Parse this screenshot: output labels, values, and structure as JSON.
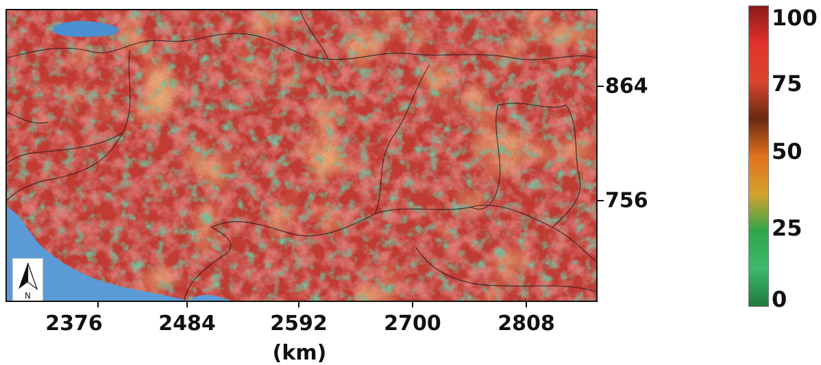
{
  "map": {
    "x_tick_labels": [
      "2376",
      "2484",
      "2592",
      "2700",
      "2808"
    ],
    "y_tick_labels": [
      "864",
      "756"
    ],
    "x_unit": "(km)",
    "north_arrow_letter": "N",
    "palette": {
      "water": "#4a8fd0",
      "land_high": "#b22a2a",
      "land_mid": "#e0503a",
      "land_low": "#2e8a55",
      "boundary": "#222222"
    }
  },
  "legend": {
    "labels": [
      "100",
      "75",
      "50",
      "25",
      "0"
    ],
    "stops": [
      "#8b1a1a",
      "#e3322b",
      "#d9452d",
      "#6b2a12",
      "#e0701f",
      "#d7a12c",
      "#2fa64a",
      "#3cb96a",
      "#1e7a3e"
    ]
  },
  "chart_data": {
    "type": "heatmap",
    "x_ticks": [
      2376,
      2484,
      2592,
      2700,
      2808
    ],
    "y_ticks": [
      864,
      756
    ],
    "xlabel": "(km)",
    "ylabel": "",
    "colorbar_ticks": [
      0,
      25,
      50,
      75,
      100
    ],
    "colorbar_range": [
      0,
      100
    ]
  }
}
